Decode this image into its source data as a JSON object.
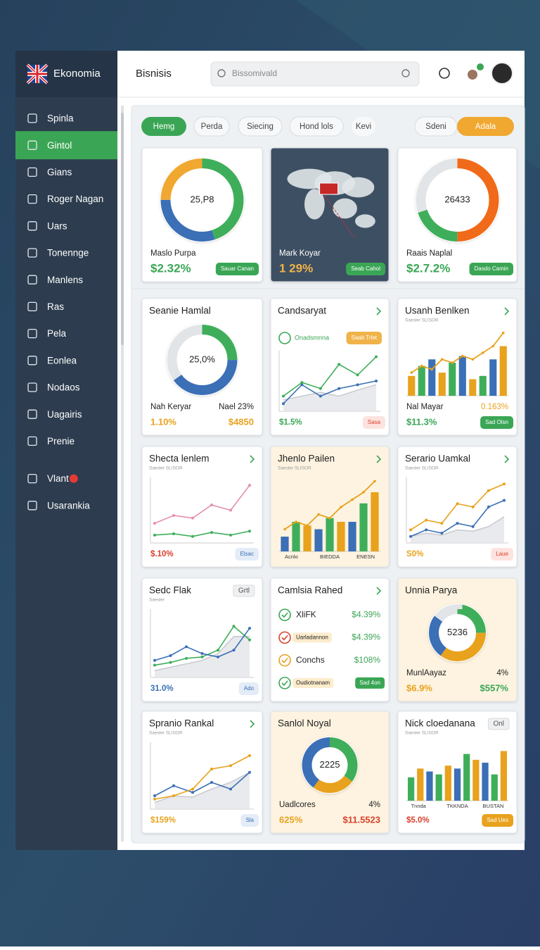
{
  "brand": "Ekonomia",
  "nav": {
    "active": 1,
    "items": [
      {
        "label": "Spinla"
      },
      {
        "label": "Gintol"
      },
      {
        "label": "Gians"
      },
      {
        "label": "Roger Nagan"
      },
      {
        "label": "Uars"
      },
      {
        "label": "Tonennge"
      },
      {
        "label": "Manlens"
      },
      {
        "label": "Ras"
      },
      {
        "label": "Pela"
      },
      {
        "label": "Eonlea"
      },
      {
        "label": "Nodaos"
      },
      {
        "label": "Uagairis"
      },
      {
        "label": "Prenie"
      },
      {
        "label": "Vlant",
        "badge": true
      },
      {
        "label": "Usarankia"
      }
    ]
  },
  "header": {
    "title": "Bisnisis",
    "search": "Bissomivald"
  },
  "tabs": [
    {
      "label": "Hemg",
      "bg": "#3aa655",
      "color": "#ffffff"
    },
    {
      "label": "Perda"
    },
    {
      "label": "Siecing"
    },
    {
      "label": "Hond lols"
    },
    {
      "label": "Kevi"
    },
    {
      "label": "Sdeni"
    },
    {
      "label": "Adala",
      "bg": "#f0a830",
      "color": "#ffffff"
    }
  ],
  "top_cards": [
    {
      "chart": {
        "type": "donut",
        "center": "25,P8",
        "values": [
          45,
          30,
          25
        ],
        "colors": [
          "#3fae5a",
          "#3b6fb6",
          "#f0a830"
        ]
      },
      "rows": [
        [
          {
            "text": "Maslo Purpa"
          }
        ],
        [
          {
            "text": "$2.32%",
            "color": "#3aa655"
          },
          {
            "text": "Sauar Canan",
            "color": "#ffffff",
            "bg": "#3aa655"
          }
        ]
      ]
    },
    {
      "background": "#3c5063",
      "chart": {
        "type": "map"
      },
      "rows": [
        [
          {
            "text": "Mark Koyar",
            "color": "#ffffff"
          }
        ],
        [
          {
            "text": "1 29%",
            "color": "#f0b34a"
          },
          {
            "text": "Seab Cahol",
            "color": "#ffffff",
            "bg": "#3aa655"
          }
        ]
      ]
    },
    {
      "chart": {
        "type": "donut",
        "center": "26433",
        "values": [
          50,
          20,
          30
        ],
        "colors": [
          "#f06a1a",
          "#3fae5a",
          "#e2e5e8"
        ]
      },
      "rows": [
        [
          {
            "text": "Raais Naplal"
          }
        ],
        [
          {
            "text": "$2.7.2%",
            "color": "#3aa655"
          },
          {
            "text": "Dasdo Camin",
            "color": "#ffffff",
            "bg": "#3aa655"
          }
        ]
      ]
    }
  ],
  "cards": [
    {
      "title": "Seanie Hamlal",
      "chart": {
        "type": "donut",
        "center": "25,0%",
        "values": [
          25,
          40,
          35
        ],
        "colors": [
          "#3fae5a",
          "#3b6fb6",
          "#e2e5e8"
        ]
      },
      "rows": [
        [
          {
            "text": "Nah Keryar"
          },
          {
            "text": "Nael 23%"
          }
        ],
        [
          {
            "text": "1.10%",
            "color": "#e8a21d"
          },
          {
            "text": "$4850",
            "color": "#e8a21d"
          }
        ]
      ]
    },
    {
      "title": "Candsaryat",
      "arrow": true,
      "tags": [
        {
          "text": "Onadsmnna",
          "color": "#3aa655"
        },
        {
          "text": "Saab Trlet",
          "color": "#ffffff",
          "bg": "#f0b34a"
        }
      ],
      "chart": {
        "type": "line",
        "ylim": [
          0,
          80
        ],
        "series": [
          {
            "color": "#c9ccd0",
            "fill": "#e3e5e8",
            "values": [
              15,
              20,
              25,
              20,
              28,
              35
            ]
          },
          {
            "color": "#3b6fb6",
            "values": [
              10,
              35,
              20,
              30,
              35,
              40
            ]
          },
          {
            "color": "#3fae5a",
            "values": [
              20,
              38,
              30,
              62,
              48,
              72
            ]
          }
        ]
      },
      "rows": [
        [
          {
            "text": "$1.5%",
            "color": "#3aa655"
          },
          {
            "text": "Sasa",
            "color": "#d9412b",
            "bg": "#fde3df"
          }
        ]
      ]
    },
    {
      "title": "Usanh Benlken",
      "subtitle": "Saesler SLISOR",
      "arrow": true,
      "chart": {
        "type": "bar",
        "ylim": [
          0,
          100
        ],
        "values": [
          30,
          45,
          55,
          35,
          50,
          60,
          25,
          30,
          55,
          75
        ],
        "colors": [
          "#e8a21d",
          "#3fae5a",
          "#3b6fb6"
        ],
        "line": {
          "color": "#e8a21d",
          "values": [
            35,
            45,
            40,
            55,
            50,
            60,
            55,
            65,
            75,
            95
          ]
        }
      },
      "rows": [
        [
          {
            "text": "Nal Mayar"
          },
          {
            "text": "0.163%",
            "color": "#e8a21d"
          }
        ],
        [
          {
            "text": "$11.3%",
            "color": "#3aa655"
          },
          {
            "text": "Sad Olsn",
            "color": "#ffffff",
            "bg": "#3aa655"
          }
        ]
      ]
    },
    {
      "title": "Shecta lenlem",
      "subtitle": "Saesler SLISOR",
      "arrow": true,
      "chart": {
        "type": "line",
        "ylim": [
          0,
          100
        ],
        "series": [
          {
            "color": "#3fae5a",
            "values": [
              12,
              14,
              10,
              16,
              12,
              18
            ]
          },
          {
            "color": "#e58fa8",
            "values": [
              30,
              42,
              38,
              58,
              50,
              88
            ]
          }
        ]
      },
      "rows": [
        [
          {
            "text": "$.10%",
            "color": "#d9412b"
          },
          {
            "text": "Elsac",
            "color": "#3b6fb6",
            "bg": "#e3ecf7"
          }
        ]
      ]
    },
    {
      "title": "Jhenlo Pailen",
      "subtitle": "Saesler SLISOR",
      "arrow": true,
      "background": "#fdf3e0",
      "chart": {
        "type": "bar",
        "ylim": [
          0,
          100
        ],
        "values": [
          20,
          40,
          35,
          30,
          45,
          40,
          40,
          65,
          80
        ],
        "colors": [
          "#3b6fb6",
          "#3fae5a",
          "#e8a21d"
        ],
        "categories": [
          "Acnlo",
          null,
          null,
          null,
          "BIEDDA",
          null,
          null,
          null,
          "ENESN"
        ],
        "line": {
          "color": "#e8a21d",
          "values": [
            30,
            40,
            35,
            50,
            45,
            60,
            70,
            80,
            95
          ]
        }
      },
      "rows": []
    },
    {
      "title": "Serario Uamkal",
      "subtitle": "Saesler SLISOR",
      "arrow": true,
      "chart": {
        "type": "line",
        "ylim": [
          0,
          100
        ],
        "series": [
          {
            "color": "#c9ccd0",
            "fill": "#e3e5e8",
            "values": [
              10,
              15,
              12,
              20,
              18,
              25,
              40
            ]
          },
          {
            "color": "#3b6fb6",
            "values": [
              10,
              20,
              15,
              30,
              25,
              55,
              65
            ]
          },
          {
            "color": "#e8a21d",
            "values": [
              20,
              35,
              30,
              60,
              55,
              80,
              90
            ]
          }
        ]
      },
      "rows": [
        [
          {
            "text": "S0%",
            "color": "#e8a21d"
          },
          {
            "text": "Laue",
            "color": "#d9412b",
            "bg": "#fde3df"
          }
        ]
      ]
    },
    {
      "title": "Sedc Flak",
      "subtitle": "Saesler",
      "tag": "Grtl",
      "chart": {
        "type": "line",
        "ylim": [
          0,
          100
        ],
        "series": [
          {
            "color": "#c9ccd0",
            "fill": "#e3e5e8",
            "values": [
              10,
              15,
              20,
              25,
              35,
              60,
              60
            ]
          },
          {
            "color": "#3fae5a",
            "values": [
              18,
              22,
              28,
              30,
              40,
              75,
              55
            ]
          },
          {
            "color": "#3b6fb6",
            "values": [
              25,
              32,
              45,
              35,
              30,
              40,
              72
            ]
          }
        ]
      },
      "rows": [
        [
          {
            "text": "31.0%",
            "color": "#3b6fb6"
          },
          {
            "text": "Ado",
            "color": "#3b6fb6",
            "bg": "#e3ecf7"
          }
        ]
      ]
    },
    {
      "title": "Camlsia Rahed",
      "arrow": true,
      "chart": {
        "type": "list",
        "items": [
          {
            "label": "XliFK",
            "value": "$4.39%",
            "color": "#3aa655"
          },
          {
            "label": "Uarladannon",
            "value": "$4.39%",
            "color": "#d9412b",
            "pill": true
          },
          {
            "label": "Conchs",
            "value": "$108%",
            "color": "#e8a21d"
          },
          {
            "label": "Oudiotnanam",
            "value": "Sad 4on",
            "color": "#3aa655",
            "pill": true
          }
        ]
      },
      "rows": []
    },
    {
      "title": "Unnia Parya",
      "background": "#fdf3e0",
      "chart": {
        "type": "donut",
        "center": "5236",
        "values": [
          25,
          35,
          25,
          15
        ],
        "colors": [
          "#3fae5a",
          "#e8a21d",
          "#3b6fb6",
          "#e2e5e8"
        ]
      },
      "rows": [
        [
          {
            "text": "MunlAayaz"
          },
          {
            "text": "4%"
          }
        ],
        [
          {
            "text": "$6.9%",
            "color": "#e8a21d"
          },
          {
            "text": "$557%",
            "color": "#3aa655"
          }
        ]
      ]
    },
    {
      "title": "Spranio Rankal",
      "subtitle": "Saesler SLISOR",
      "arrow": true,
      "chart": {
        "type": "line",
        "ylim": [
          0,
          100
        ],
        "series": [
          {
            "color": "#c9ccd0",
            "fill": "#e3e5e8",
            "values": [
              10,
              20,
              18,
              30,
              40,
              55
            ]
          },
          {
            "color": "#3b6fb6",
            "values": [
              20,
              35,
              25,
              40,
              30,
              55
            ]
          },
          {
            "color": "#e8a21d",
            "values": [
              15,
              20,
              30,
              60,
              65,
              80
            ]
          }
        ]
      },
      "rows": [
        [
          {
            "text": "$159%",
            "color": "#e8a21d"
          },
          {
            "text": "Sla",
            "color": "#3b6fb6",
            "bg": "#e3ecf7"
          }
        ]
      ]
    },
    {
      "title": "Sanlol Noyal",
      "background": "#fdf3e0",
      "chart": {
        "type": "donut",
        "center": "2225",
        "values": [
          35,
          25,
          40
        ],
        "colors": [
          "#3fae5a",
          "#e8a21d",
          "#3b6fb6"
        ]
      },
      "rows": [
        [
          {
            "text": "Uadlcores"
          },
          {
            "text": "4%"
          }
        ],
        [
          {
            "text": "625%",
            "color": "#e8a21d"
          },
          {
            "text": "$11.5523",
            "color": "#d9412b"
          }
        ]
      ]
    },
    {
      "title": "Nick cloedanana",
      "subtitle": "Saesler SLISOR",
      "tag": "Onl",
      "chart": {
        "type": "bar",
        "ylim": [
          0,
          100
        ],
        "values": [
          40,
          55,
          50,
          45,
          60,
          55,
          80,
          70,
          65,
          45,
          85
        ],
        "colors": [
          "#3fae5a",
          "#e8a21d",
          "#3b6fb6"
        ],
        "categories": [
          "Tnnda",
          null,
          null,
          null,
          null,
          "TKKNDA",
          null,
          null,
          null,
          null,
          "BUSTAN"
        ]
      },
      "rows": [
        [
          {
            "text": "$5.0%",
            "color": "#d9412b"
          },
          {
            "text": "Sad Ues",
            "color": "#ffffff",
            "bg": "#e8a21d"
          }
        ]
      ]
    }
  ]
}
